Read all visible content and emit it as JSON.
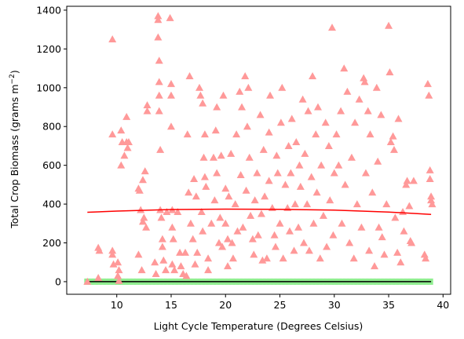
{
  "chart_data": {
    "type": "scatter",
    "title": "",
    "xlabel": "Light Cycle Temperature (Degrees Celsius)",
    "ylabel": "Total Crop Biomass (grams m",
    "ylabel_unit_superscript": "−2",
    "ylabel_close": ")",
    "xlim": [
      5.4,
      40.7
    ],
    "ylim": [
      -65,
      1420
    ],
    "xticks": [
      10,
      15,
      20,
      25,
      30,
      35,
      40
    ],
    "yticks": [
      0,
      200,
      400,
      600,
      800,
      1000,
      1200,
      1400
    ],
    "grid": false,
    "legend": "none",
    "colors": {
      "triangles": "#ff9999",
      "zero_markers": "#90ee90",
      "trend_line": "#ff0000",
      "zero_line": "#000000"
    },
    "series": [
      {
        "marker": "triangle",
        "points": [
          [
            7.3,
            0
          ],
          [
            8.3,
            175
          ],
          [
            8.4,
            160
          ],
          [
            8.3,
            20
          ],
          [
            9.6,
            1250
          ],
          [
            9.6,
            760
          ],
          [
            9.6,
            160
          ],
          [
            9.6,
            140
          ],
          [
            9.7,
            90
          ],
          [
            10.1,
            100
          ],
          [
            10.2,
            60
          ],
          [
            10.1,
            30
          ],
          [
            10.2,
            5
          ],
          [
            10.4,
            780
          ],
          [
            10.5,
            720
          ],
          [
            10.4,
            600
          ],
          [
            10.7,
            650
          ],
          [
            10.9,
            720
          ],
          [
            11.0,
            690
          ],
          [
            10.9,
            850
          ],
          [
            11.1,
            720
          ],
          [
            12.0,
            480
          ],
          [
            12.1,
            470
          ],
          [
            12.2,
            370
          ],
          [
            12.0,
            140
          ],
          [
            12.3,
            60
          ],
          [
            12.4,
            525
          ],
          [
            12.6,
            570
          ],
          [
            12.4,
            310
          ],
          [
            12.5,
            330
          ],
          [
            12.7,
            280
          ],
          [
            12.8,
            910
          ],
          [
            12.8,
            880
          ],
          [
            13.5,
            100
          ],
          [
            13.6,
            40
          ],
          [
            13.8,
            1370
          ],
          [
            13.8,
            1350
          ],
          [
            13.8,
            1260
          ],
          [
            13.9,
            1140
          ],
          [
            13.9,
            1030
          ],
          [
            13.9,
            960
          ],
          [
            13.9,
            880
          ],
          [
            14.0,
            680
          ],
          [
            14.0,
            370
          ],
          [
            14.1,
            330
          ],
          [
            14.2,
            220
          ],
          [
            14.2,
            180
          ],
          [
            14.3,
            110
          ],
          [
            14.5,
            60
          ],
          [
            14.6,
            360
          ],
          [
            14.9,
            1360
          ],
          [
            15.0,
            1020
          ],
          [
            15.0,
            960
          ],
          [
            15.0,
            800
          ],
          [
            15.1,
            370
          ],
          [
            15.1,
            280
          ],
          [
            15.2,
            220
          ],
          [
            15.1,
            90
          ],
          [
            15.3,
            60
          ],
          [
            15.6,
            360
          ],
          [
            15.8,
            150
          ],
          [
            15.9,
            80
          ],
          [
            16.1,
            40
          ],
          [
            16.3,
            150
          ],
          [
            16.4,
            30
          ],
          [
            16.5,
            760
          ],
          [
            16.6,
            460
          ],
          [
            16.7,
            1060
          ],
          [
            16.8,
            300
          ],
          [
            17.0,
            220
          ],
          [
            17.1,
            530
          ],
          [
            17.2,
            90
          ],
          [
            17.3,
            440
          ],
          [
            17.4,
            150
          ],
          [
            17.6,
            1000
          ],
          [
            17.7,
            960
          ],
          [
            17.9,
            920
          ],
          [
            17.8,
            360
          ],
          [
            17.9,
            260
          ],
          [
            18.0,
            640
          ],
          [
            18.1,
            760
          ],
          [
            18.1,
            540
          ],
          [
            18.2,
            490
          ],
          [
            18.4,
            120
          ],
          [
            18.4,
            60
          ],
          [
            18.7,
            300
          ],
          [
            18.9,
            640
          ],
          [
            19.0,
            420
          ],
          [
            19.1,
            780
          ],
          [
            19.2,
            900
          ],
          [
            19.2,
            560
          ],
          [
            19.4,
            200
          ],
          [
            19.5,
            330
          ],
          [
            19.6,
            650
          ],
          [
            19.7,
            180
          ],
          [
            19.8,
            960
          ],
          [
            20.0,
            480
          ],
          [
            20.0,
            300
          ],
          [
            20.2,
            80
          ],
          [
            20.2,
            220
          ],
          [
            20.3,
            440
          ],
          [
            20.5,
            660
          ],
          [
            20.6,
            200
          ],
          [
            20.7,
            120
          ],
          [
            20.9,
            400
          ],
          [
            21.0,
            760
          ],
          [
            21.1,
            260
          ],
          [
            21.3,
            980
          ],
          [
            21.4,
            550
          ],
          [
            21.5,
            900
          ],
          [
            21.6,
            280
          ],
          [
            21.8,
            1060
          ],
          [
            21.9,
            470
          ],
          [
            22.0,
            800
          ],
          [
            22.1,
            1000
          ],
          [
            22.2,
            640
          ],
          [
            22.3,
            340
          ],
          [
            22.5,
            220
          ],
          [
            22.6,
            140
          ],
          [
            22.7,
            420
          ],
          [
            22.9,
            560
          ],
          [
            23.0,
            240
          ],
          [
            23.2,
            860
          ],
          [
            23.3,
            350
          ],
          [
            23.4,
            110
          ],
          [
            23.5,
            680
          ],
          [
            23.6,
            440
          ],
          [
            23.8,
            120
          ],
          [
            24.0,
            770
          ],
          [
            24.0,
            520
          ],
          [
            24.1,
            960
          ],
          [
            24.3,
            380
          ],
          [
            24.5,
            240
          ],
          [
            24.6,
            180
          ],
          [
            24.7,
            650
          ],
          [
            24.8,
            560
          ],
          [
            25.0,
            300
          ],
          [
            25.1,
            820
          ],
          [
            25.2,
            1000
          ],
          [
            25.3,
            120
          ],
          [
            25.5,
            500
          ],
          [
            25.7,
            380
          ],
          [
            25.8,
            700
          ],
          [
            25.9,
            260
          ],
          [
            26.0,
            560
          ],
          [
            26.1,
            840
          ],
          [
            26.3,
            160
          ],
          [
            26.4,
            400
          ],
          [
            26.5,
            720
          ],
          [
            26.7,
            280
          ],
          [
            26.8,
            600
          ],
          [
            26.9,
            490
          ],
          [
            27.1,
            940
          ],
          [
            27.2,
            200
          ],
          [
            27.3,
            660
          ],
          [
            27.5,
            400
          ],
          [
            27.6,
            880
          ],
          [
            27.7,
            160
          ],
          [
            27.9,
            540
          ],
          [
            28.0,
            1060
          ],
          [
            28.1,
            300
          ],
          [
            28.3,
            760
          ],
          [
            28.4,
            460
          ],
          [
            28.5,
            900
          ],
          [
            28.7,
            120
          ],
          [
            28.8,
            600
          ],
          [
            29.0,
            340
          ],
          [
            29.2,
            820
          ],
          [
            29.3,
            180
          ],
          [
            29.5,
            700
          ],
          [
            29.6,
            420
          ],
          [
            29.8,
            1310
          ],
          [
            29.9,
            240
          ],
          [
            30.0,
            560
          ],
          [
            30.2,
            760
          ],
          [
            30.4,
            600
          ],
          [
            30.6,
            880
          ],
          [
            30.7,
            300
          ],
          [
            30.9,
            1100
          ],
          [
            31.0,
            500
          ],
          [
            31.2,
            980
          ],
          [
            31.4,
            200
          ],
          [
            31.6,
            640
          ],
          [
            31.8,
            120
          ],
          [
            31.9,
            820
          ],
          [
            32.1,
            400
          ],
          [
            32.3,
            940
          ],
          [
            32.5,
            280
          ],
          [
            32.7,
            1050
          ],
          [
            32.8,
            1030
          ],
          [
            32.9,
            560
          ],
          [
            33.1,
            880
          ],
          [
            33.2,
            160
          ],
          [
            33.3,
            760
          ],
          [
            33.5,
            460
          ],
          [
            33.7,
            80
          ],
          [
            33.9,
            1000
          ],
          [
            34.0,
            620
          ],
          [
            34.1,
            280
          ],
          [
            34.3,
            860
          ],
          [
            34.4,
            230
          ],
          [
            34.6,
            140
          ],
          [
            34.8,
            400
          ],
          [
            35.0,
            1320
          ],
          [
            35.1,
            1080
          ],
          [
            35.2,
            720
          ],
          [
            35.4,
            750
          ],
          [
            35.5,
            680
          ],
          [
            35.6,
            330
          ],
          [
            35.8,
            150
          ],
          [
            35.9,
            840
          ],
          [
            36.1,
            100
          ],
          [
            36.3,
            360
          ],
          [
            36.4,
            260
          ],
          [
            36.6,
            500
          ],
          [
            36.7,
            520
          ],
          [
            36.9,
            390
          ],
          [
            37.0,
            210
          ],
          [
            37.1,
            200
          ],
          [
            37.3,
            520
          ],
          [
            38.3,
            140
          ],
          [
            38.4,
            120
          ],
          [
            38.6,
            1020
          ],
          [
            38.7,
            960
          ],
          [
            38.8,
            575
          ],
          [
            38.8,
            530
          ],
          [
            38.9,
            440
          ],
          [
            38.9,
            420
          ],
          [
            39.0,
            400
          ]
        ]
      },
      {
        "marker": "square",
        "x_range": [
          7.3,
          38.9
        ],
        "y": 0
      }
    ],
    "trend_line": {
      "x": [
        7.3,
        10,
        15,
        20,
        25,
        30,
        35,
        38.9
      ],
      "y": [
        358,
        364,
        372,
        374,
        373,
        369,
        359,
        347
      ]
    },
    "zero_line": {
      "x": [
        7.3,
        38.9
      ],
      "y": [
        0,
        0
      ]
    }
  }
}
